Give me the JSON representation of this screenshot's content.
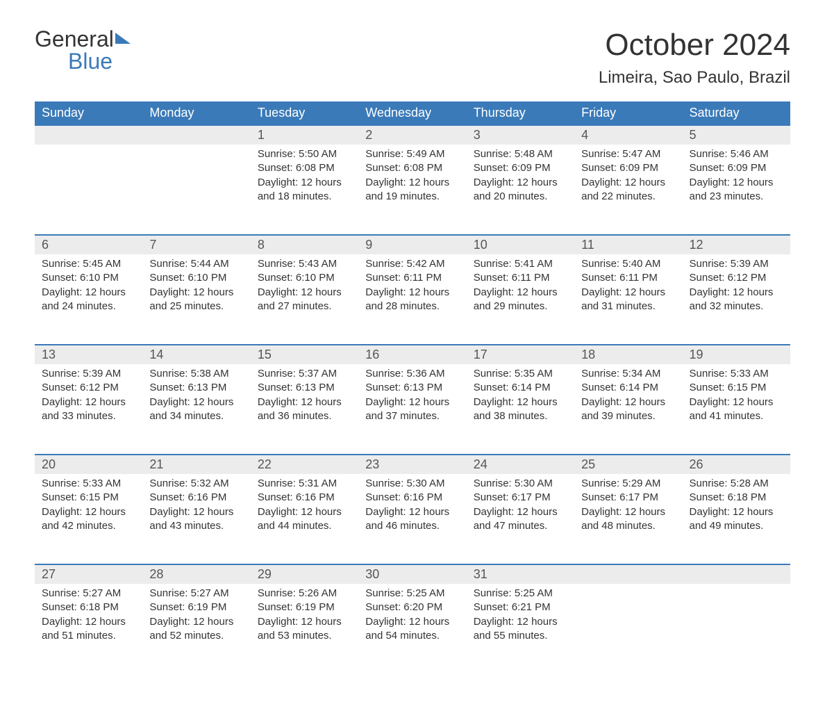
{
  "logo": {
    "text_top": "General",
    "text_bottom": "Blue"
  },
  "title": "October 2024",
  "location": "Limeira, Sao Paulo, Brazil",
  "colors": {
    "header_bg": "#3a7ab8",
    "header_text": "#ffffff",
    "daynum_bg": "#ececec",
    "body_text": "#333333",
    "border": "#3a7ab8",
    "logo_blue": "#3a7ab8"
  },
  "day_headers": [
    "Sunday",
    "Monday",
    "Tuesday",
    "Wednesday",
    "Thursday",
    "Friday",
    "Saturday"
  ],
  "weeks": [
    [
      {
        "day": "",
        "sunrise": "",
        "sunset": "",
        "daylight1": "",
        "daylight2": ""
      },
      {
        "day": "",
        "sunrise": "",
        "sunset": "",
        "daylight1": "",
        "daylight2": ""
      },
      {
        "day": "1",
        "sunrise": "Sunrise: 5:50 AM",
        "sunset": "Sunset: 6:08 PM",
        "daylight1": "Daylight: 12 hours",
        "daylight2": "and 18 minutes."
      },
      {
        "day": "2",
        "sunrise": "Sunrise: 5:49 AM",
        "sunset": "Sunset: 6:08 PM",
        "daylight1": "Daylight: 12 hours",
        "daylight2": "and 19 minutes."
      },
      {
        "day": "3",
        "sunrise": "Sunrise: 5:48 AM",
        "sunset": "Sunset: 6:09 PM",
        "daylight1": "Daylight: 12 hours",
        "daylight2": "and 20 minutes."
      },
      {
        "day": "4",
        "sunrise": "Sunrise: 5:47 AM",
        "sunset": "Sunset: 6:09 PM",
        "daylight1": "Daylight: 12 hours",
        "daylight2": "and 22 minutes."
      },
      {
        "day": "5",
        "sunrise": "Sunrise: 5:46 AM",
        "sunset": "Sunset: 6:09 PM",
        "daylight1": "Daylight: 12 hours",
        "daylight2": "and 23 minutes."
      }
    ],
    [
      {
        "day": "6",
        "sunrise": "Sunrise: 5:45 AM",
        "sunset": "Sunset: 6:10 PM",
        "daylight1": "Daylight: 12 hours",
        "daylight2": "and 24 minutes."
      },
      {
        "day": "7",
        "sunrise": "Sunrise: 5:44 AM",
        "sunset": "Sunset: 6:10 PM",
        "daylight1": "Daylight: 12 hours",
        "daylight2": "and 25 minutes."
      },
      {
        "day": "8",
        "sunrise": "Sunrise: 5:43 AM",
        "sunset": "Sunset: 6:10 PM",
        "daylight1": "Daylight: 12 hours",
        "daylight2": "and 27 minutes."
      },
      {
        "day": "9",
        "sunrise": "Sunrise: 5:42 AM",
        "sunset": "Sunset: 6:11 PM",
        "daylight1": "Daylight: 12 hours",
        "daylight2": "and 28 minutes."
      },
      {
        "day": "10",
        "sunrise": "Sunrise: 5:41 AM",
        "sunset": "Sunset: 6:11 PM",
        "daylight1": "Daylight: 12 hours",
        "daylight2": "and 29 minutes."
      },
      {
        "day": "11",
        "sunrise": "Sunrise: 5:40 AM",
        "sunset": "Sunset: 6:11 PM",
        "daylight1": "Daylight: 12 hours",
        "daylight2": "and 31 minutes."
      },
      {
        "day": "12",
        "sunrise": "Sunrise: 5:39 AM",
        "sunset": "Sunset: 6:12 PM",
        "daylight1": "Daylight: 12 hours",
        "daylight2": "and 32 minutes."
      }
    ],
    [
      {
        "day": "13",
        "sunrise": "Sunrise: 5:39 AM",
        "sunset": "Sunset: 6:12 PM",
        "daylight1": "Daylight: 12 hours",
        "daylight2": "and 33 minutes."
      },
      {
        "day": "14",
        "sunrise": "Sunrise: 5:38 AM",
        "sunset": "Sunset: 6:13 PM",
        "daylight1": "Daylight: 12 hours",
        "daylight2": "and 34 minutes."
      },
      {
        "day": "15",
        "sunrise": "Sunrise: 5:37 AM",
        "sunset": "Sunset: 6:13 PM",
        "daylight1": "Daylight: 12 hours",
        "daylight2": "and 36 minutes."
      },
      {
        "day": "16",
        "sunrise": "Sunrise: 5:36 AM",
        "sunset": "Sunset: 6:13 PM",
        "daylight1": "Daylight: 12 hours",
        "daylight2": "and 37 minutes."
      },
      {
        "day": "17",
        "sunrise": "Sunrise: 5:35 AM",
        "sunset": "Sunset: 6:14 PM",
        "daylight1": "Daylight: 12 hours",
        "daylight2": "and 38 minutes."
      },
      {
        "day": "18",
        "sunrise": "Sunrise: 5:34 AM",
        "sunset": "Sunset: 6:14 PM",
        "daylight1": "Daylight: 12 hours",
        "daylight2": "and 39 minutes."
      },
      {
        "day": "19",
        "sunrise": "Sunrise: 5:33 AM",
        "sunset": "Sunset: 6:15 PM",
        "daylight1": "Daylight: 12 hours",
        "daylight2": "and 41 minutes."
      }
    ],
    [
      {
        "day": "20",
        "sunrise": "Sunrise: 5:33 AM",
        "sunset": "Sunset: 6:15 PM",
        "daylight1": "Daylight: 12 hours",
        "daylight2": "and 42 minutes."
      },
      {
        "day": "21",
        "sunrise": "Sunrise: 5:32 AM",
        "sunset": "Sunset: 6:16 PM",
        "daylight1": "Daylight: 12 hours",
        "daylight2": "and 43 minutes."
      },
      {
        "day": "22",
        "sunrise": "Sunrise: 5:31 AM",
        "sunset": "Sunset: 6:16 PM",
        "daylight1": "Daylight: 12 hours",
        "daylight2": "and 44 minutes."
      },
      {
        "day": "23",
        "sunrise": "Sunrise: 5:30 AM",
        "sunset": "Sunset: 6:16 PM",
        "daylight1": "Daylight: 12 hours",
        "daylight2": "and 46 minutes."
      },
      {
        "day": "24",
        "sunrise": "Sunrise: 5:30 AM",
        "sunset": "Sunset: 6:17 PM",
        "daylight1": "Daylight: 12 hours",
        "daylight2": "and 47 minutes."
      },
      {
        "day": "25",
        "sunrise": "Sunrise: 5:29 AM",
        "sunset": "Sunset: 6:17 PM",
        "daylight1": "Daylight: 12 hours",
        "daylight2": "and 48 minutes."
      },
      {
        "day": "26",
        "sunrise": "Sunrise: 5:28 AM",
        "sunset": "Sunset: 6:18 PM",
        "daylight1": "Daylight: 12 hours",
        "daylight2": "and 49 minutes."
      }
    ],
    [
      {
        "day": "27",
        "sunrise": "Sunrise: 5:27 AM",
        "sunset": "Sunset: 6:18 PM",
        "daylight1": "Daylight: 12 hours",
        "daylight2": "and 51 minutes."
      },
      {
        "day": "28",
        "sunrise": "Sunrise: 5:27 AM",
        "sunset": "Sunset: 6:19 PM",
        "daylight1": "Daylight: 12 hours",
        "daylight2": "and 52 minutes."
      },
      {
        "day": "29",
        "sunrise": "Sunrise: 5:26 AM",
        "sunset": "Sunset: 6:19 PM",
        "daylight1": "Daylight: 12 hours",
        "daylight2": "and 53 minutes."
      },
      {
        "day": "30",
        "sunrise": "Sunrise: 5:25 AM",
        "sunset": "Sunset: 6:20 PM",
        "daylight1": "Daylight: 12 hours",
        "daylight2": "and 54 minutes."
      },
      {
        "day": "31",
        "sunrise": "Sunrise: 5:25 AM",
        "sunset": "Sunset: 6:21 PM",
        "daylight1": "Daylight: 12 hours",
        "daylight2": "and 55 minutes."
      },
      {
        "day": "",
        "sunrise": "",
        "sunset": "",
        "daylight1": "",
        "daylight2": ""
      },
      {
        "day": "",
        "sunrise": "",
        "sunset": "",
        "daylight1": "",
        "daylight2": ""
      }
    ]
  ]
}
